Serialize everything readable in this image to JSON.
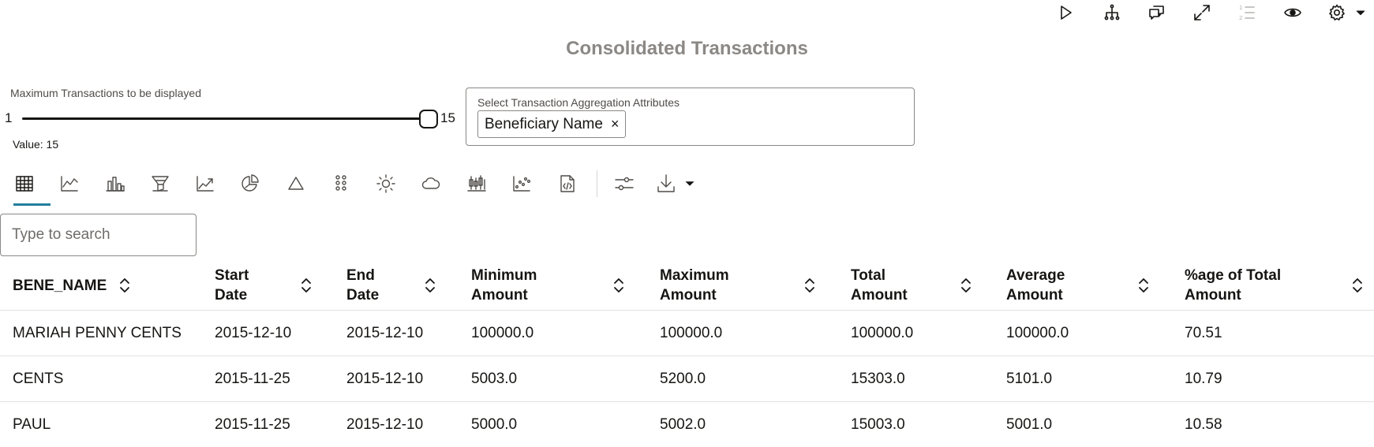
{
  "toolbar": {
    "icons": [
      "play-icon",
      "hierarchy-icon",
      "comments-icon",
      "expand-icon",
      "numbered-list-icon",
      "eye-icon",
      "gear-icon",
      "caret-down-icon"
    ]
  },
  "title": "Consolidated Transactions",
  "slider": {
    "label": "Maximum Transactions to be displayed",
    "min": "1",
    "max": "15",
    "value": 15,
    "value_text": "Value: 15"
  },
  "aggregation": {
    "label": "Select Transaction Aggregation Attributes",
    "chips": [
      "Beneficiary Name"
    ],
    "remove_symbol": "×"
  },
  "view_switcher": {
    "active": "table",
    "views": [
      "table-icon",
      "line-chart-icon",
      "bar-chart-icon",
      "funnel-chart-icon",
      "trend-chart-icon",
      "pie-chart-icon",
      "pyramid-chart-icon",
      "bubble-grid-icon",
      "sunburst-icon",
      "tag-cloud-icon",
      "stock-chart-icon",
      "scatter-chart-icon",
      "code-file-icon",
      "filter-settings-icon",
      "download-icon"
    ]
  },
  "search": {
    "placeholder": "Type to search"
  },
  "table": {
    "columns": [
      {
        "line1": "BENE_NAME",
        "line2": ""
      },
      {
        "line1": "Start",
        "line2": "Date"
      },
      {
        "line1": "End",
        "line2": "Date"
      },
      {
        "line1": "Minimum",
        "line2": "Amount"
      },
      {
        "line1": "Maximum",
        "line2": "Amount"
      },
      {
        "line1": "Total",
        "line2": "Amount"
      },
      {
        "line1": "Average",
        "line2": "Amount"
      },
      {
        "line1": "%age of Total",
        "line2": "Amount"
      }
    ],
    "rows": [
      [
        "MARIAH PENNY CENTS",
        "2015-12-10",
        "2015-12-10",
        "100000.0",
        "100000.0",
        "100000.0",
        "100000.0",
        "70.51"
      ],
      [
        "CENTS",
        "2015-11-25",
        "2015-12-10",
        "5003.0",
        "5200.0",
        "15303.0",
        "5101.0",
        "10.79"
      ],
      [
        "PAUL",
        "2015-11-25",
        "2015-12-10",
        "5000.0",
        "5002.0",
        "15003.0",
        "5001.0",
        "10.58"
      ]
    ]
  }
}
